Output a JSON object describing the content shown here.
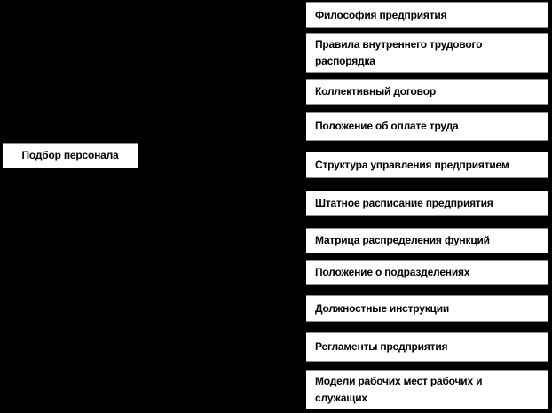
{
  "colors": {
    "background": "#000000",
    "box_fill": "#ffffff",
    "box_border": "#8f8f8f",
    "text": "#000000"
  },
  "source_box": {
    "label": "Подбор персонала"
  },
  "document_boxes": [
    {
      "label": "Философия предприятия"
    },
    {
      "label": "Правила внутреннего трудового распорядка"
    },
    {
      "label": "Коллективный договор"
    },
    {
      "label": "Положение об оплате труда"
    },
    {
      "label": "Структура управления предприятием"
    },
    {
      "label": "Штатное расписание предприятия"
    },
    {
      "label": "Матрица распределения функций"
    },
    {
      "label": "Положение о подразделениях"
    },
    {
      "label": "Должностные инструкции"
    },
    {
      "label": "Регламенты предприятия"
    },
    {
      "label": "Модели рабочих мест рабочих и служащих"
    }
  ]
}
